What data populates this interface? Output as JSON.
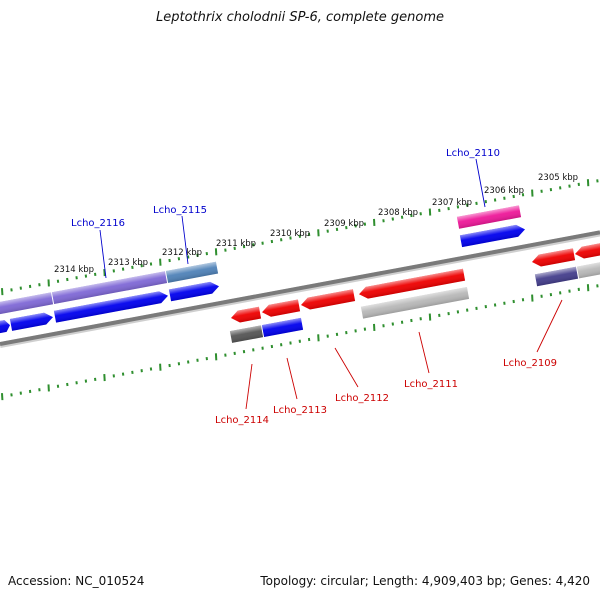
{
  "title": "Leptothrix cholodnii SP-6, complete genome",
  "footer": {
    "accession": "Accession: NC_010524",
    "summary": "Topology: circular; Length: 4,909,403 bp; Genes: 4,420"
  },
  "colors": {
    "backbone": "#7a7a7a",
    "tick": "#2f8f2f",
    "label_forward": "#0000cc",
    "label_reverse": "#cc0000",
    "gene_red": "#ee0000",
    "gene_blue": "#0000ee",
    "gene_purple": "#7f68d6",
    "gene_steel": "#4f82b8",
    "gene_pink": "#ee1899",
    "gene_gray": "#b8b8b8",
    "gene_darkgray": "#555555",
    "gene_navy": "#443e8c"
  },
  "scale_labels": [
    "2314 kbp",
    "2313 kbp",
    "2312 kbp",
    "2311 kbp",
    "2310 kbp",
    "2309 kbp",
    "2308 kbp",
    "2307 kbp",
    "2306 kbp",
    "2305 kbp"
  ],
  "gene_labels_forward": [
    "Lcho_2116",
    "Lcho_2115",
    "Lcho_2110"
  ],
  "gene_labels_reverse": [
    "Lcho_2114",
    "Lcho_2113",
    "Lcho_2112",
    "Lcho_2111",
    "Lcho_2109"
  ]
}
